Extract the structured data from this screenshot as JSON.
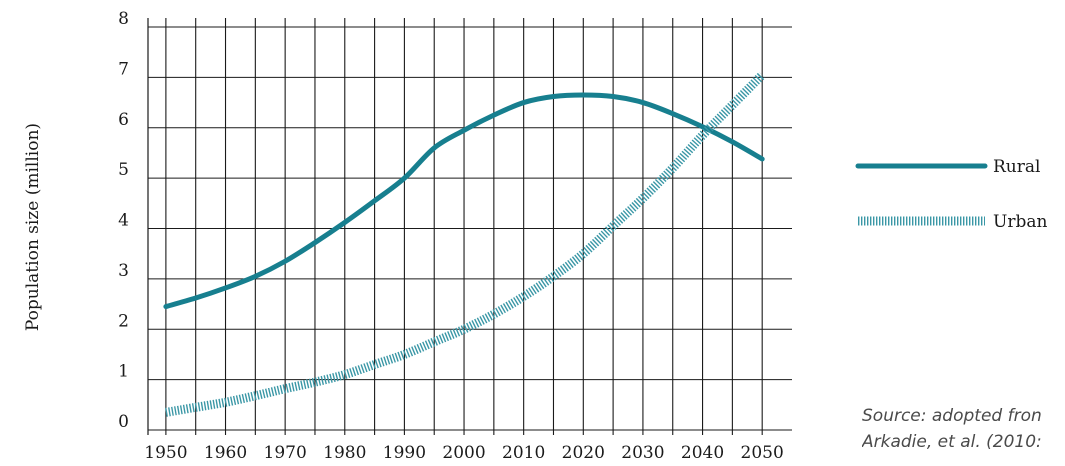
{
  "chart_data": {
    "type": "line",
    "title": "",
    "xlabel": "",
    "ylabel": "Population size (million)",
    "xlim": [
      1947,
      2055
    ],
    "ylim": [
      0,
      8
    ],
    "x_ticks": [
      "1950",
      "1960",
      "1970",
      "1980",
      "1990",
      "2000",
      "2010",
      "2020",
      "2030",
      "2040",
      "2050"
    ],
    "y_ticks": [
      "0",
      "1",
      "2",
      "3",
      "4",
      "5",
      "6",
      "7",
      "8"
    ],
    "grid": true,
    "legend_position": "right",
    "series": [
      {
        "name": "Rural",
        "style": "solid",
        "color": "#177f8f",
        "x": [
          1950,
          1955,
          1960,
          1965,
          1970,
          1975,
          1980,
          1985,
          1990,
          1995,
          2000,
          2005,
          2010,
          2015,
          2020,
          2025,
          2030,
          2035,
          2040,
          2045,
          2050
        ],
        "y": [
          2.45,
          2.62,
          2.82,
          3.05,
          3.35,
          3.72,
          4.12,
          4.55,
          5.0,
          5.6,
          5.95,
          6.25,
          6.5,
          6.62,
          6.65,
          6.62,
          6.5,
          6.28,
          6.02,
          5.72,
          5.38
        ]
      },
      {
        "name": "Urban",
        "style": "dotted",
        "color": "#3a97a6",
        "x": [
          1950,
          1955,
          1960,
          1965,
          1970,
          1975,
          1980,
          1985,
          1990,
          1995,
          2000,
          2005,
          2010,
          2015,
          2020,
          2025,
          2030,
          2035,
          2040,
          2045,
          2050
        ],
        "y": [
          0.35,
          0.45,
          0.55,
          0.68,
          0.82,
          0.95,
          1.1,
          1.3,
          1.5,
          1.75,
          2.0,
          2.3,
          2.65,
          3.05,
          3.5,
          4.05,
          4.6,
          5.2,
          5.85,
          6.45,
          7.05
        ]
      }
    ]
  },
  "source": {
    "line1": "Source: adopted fron",
    "line2": "Arkadie, et al. (2010:"
  }
}
